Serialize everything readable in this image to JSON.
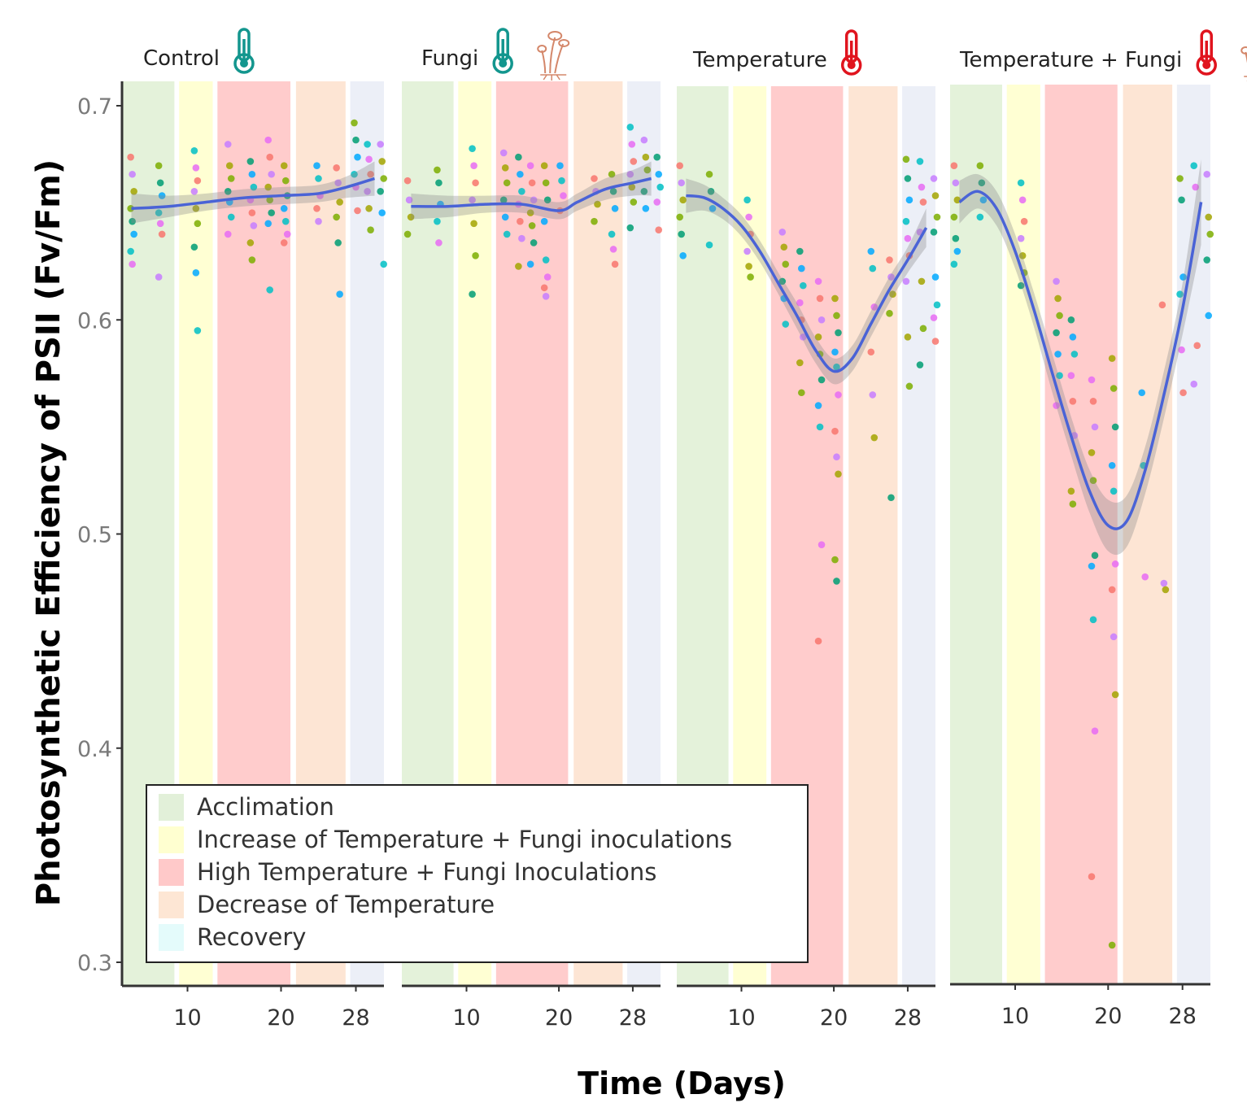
{
  "chart_data": {
    "type": "scatter",
    "xlabel": "Time (Days)",
    "ylabel": "Photosynthetic Efficiency of PSII (Fv/Fm)",
    "xlim": [
      3,
      31
    ],
    "ylim": [
      0.29,
      0.71
    ],
    "x_ticks": [
      10,
      20,
      28
    ],
    "y_ticks": [
      0.3,
      0.4,
      0.5,
      0.6,
      0.7
    ],
    "y_tick_labels": [
      "0.3",
      "0.4",
      "0.5",
      "0.6",
      "0.7"
    ],
    "legend": {
      "placement": "bottom-left",
      "items": [
        {
          "label": "Acclimation",
          "color": "#e2f0d9"
        },
        {
          "label": "Increase of Temperature + Fungi inoculations",
          "color": "#ffffd0"
        },
        {
          "label": "High Temperature + Fungi Inoculations",
          "color": "#ffc9c9"
        },
        {
          "label": "Decrease of Temperature",
          "color": "#fde6d4"
        },
        {
          "label": "Recovery",
          "color": "#e4fbfb"
        }
      ]
    },
    "phases": [
      {
        "from": 3.0,
        "to": 8.6,
        "color": "#e4f2da"
      },
      {
        "from": 9.1,
        "to": 12.7,
        "color": "#ffffd3"
      },
      {
        "from": 13.2,
        "to": 21.0,
        "color": "#ffcccc"
      },
      {
        "from": 21.6,
        "to": 26.9,
        "color": "#fde5d4"
      },
      {
        "from": 27.4,
        "to": 31.0,
        "color": "#eceff7"
      }
    ],
    "point_colors": [
      "#f8766d",
      "#7cae00",
      "#00bfc4",
      "#c77cff",
      "#009e73",
      "#e76bf3",
      "#a3a500",
      "#00a9ff"
    ],
    "panels": [
      {
        "title": "Control",
        "icon": "teal-thermometer-icon",
        "fungi_icon": false,
        "icon_color": "#13968e",
        "smooth": {
          "x": [
            4,
            8,
            12,
            16,
            20,
            24,
            27,
            30
          ],
          "y": [
            0.652,
            0.653,
            0.655,
            0.657,
            0.658,
            0.659,
            0.662,
            0.666
          ],
          "band": [
            0.007,
            0.005,
            0.004,
            0.004,
            0.004,
            0.004,
            0.005,
            0.008
          ]
        },
        "points": [
          {
            "x": 4.1,
            "y": [
              0.676,
              0.668,
              0.66,
              0.652,
              0.646,
              0.64,
              0.632,
              0.626
            ]
          },
          {
            "x": 7.1,
            "y": [
              0.672,
              0.664,
              0.658,
              0.65,
              0.645,
              0.64,
              0.62
            ]
          },
          {
            "x": 10.9,
            "y": [
              0.679,
              0.671,
              0.665,
              0.66,
              0.652,
              0.645,
              0.634,
              0.622,
              0.595
            ]
          },
          {
            "x": 14.5,
            "y": [
              0.682,
              0.672,
              0.666,
              0.66,
              0.655,
              0.648,
              0.64
            ]
          },
          {
            "x": 16.9,
            "y": [
              0.674,
              0.668,
              0.662,
              0.656,
              0.65,
              0.644,
              0.636,
              0.628
            ]
          },
          {
            "x": 18.8,
            "y": [
              0.684,
              0.676,
              0.668,
              0.662,
              0.656,
              0.65,
              0.645,
              0.614
            ]
          },
          {
            "x": 20.5,
            "y": [
              0.672,
              0.665,
              0.658,
              0.652,
              0.646,
              0.64,
              0.636
            ]
          },
          {
            "x": 24.0,
            "y": [
              0.672,
              0.666,
              0.658,
              0.652,
              0.646
            ]
          },
          {
            "x": 26.1,
            "y": [
              0.671,
              0.664,
              0.655,
              0.648,
              0.636,
              0.612
            ]
          },
          {
            "x": 28.0,
            "y": [
              0.692,
              0.684,
              0.676,
              0.668,
              0.662,
              0.651
            ]
          },
          {
            "x": 29.4,
            "y": [
              0.682,
              0.675,
              0.668,
              0.66,
              0.652,
              0.642
            ]
          },
          {
            "x": 30.8,
            "y": [
              0.682,
              0.674,
              0.666,
              0.66,
              0.65,
              0.626
            ]
          }
        ]
      },
      {
        "title": "Fungi",
        "icon": "teal-thermometer-icon",
        "fungi_icon": true,
        "icon_color": "#13968e",
        "smooth": {
          "x": [
            4,
            8,
            12,
            16,
            20,
            22,
            25,
            28,
            30
          ],
          "y": [
            0.653,
            0.653,
            0.654,
            0.654,
            0.651,
            0.655,
            0.661,
            0.664,
            0.666
          ],
          "band": [
            0.006,
            0.005,
            0.004,
            0.004,
            0.004,
            0.004,
            0.005,
            0.006,
            0.008
          ]
        },
        "points": [
          {
            "x": 3.8,
            "y": [
              0.665,
              0.656,
              0.648,
              0.64
            ]
          },
          {
            "x": 7.0,
            "y": [
              0.67,
              0.664,
              0.654,
              0.646,
              0.636
            ]
          },
          {
            "x": 10.8,
            "y": [
              0.68,
              0.672,
              0.664,
              0.656,
              0.645,
              0.63,
              0.612
            ]
          },
          {
            "x": 14.2,
            "y": [
              0.678,
              0.671,
              0.664,
              0.656,
              0.648,
              0.64
            ]
          },
          {
            "x": 15.8,
            "y": [
              0.676,
              0.668,
              0.66,
              0.654,
              0.646,
              0.638,
              0.625
            ]
          },
          {
            "x": 17.1,
            "y": [
              0.672,
              0.664,
              0.656,
              0.65,
              0.644,
              0.636,
              0.626
            ]
          },
          {
            "x": 18.6,
            "y": [
              0.672,
              0.664,
              0.656,
              0.646,
              0.628,
              0.62,
              0.615,
              0.611
            ]
          },
          {
            "x": 20.3,
            "y": [
              0.672,
              0.665,
              0.658,
              0.651
            ]
          },
          {
            "x": 24.0,
            "y": [
              0.666,
              0.66,
              0.654,
              0.646
            ]
          },
          {
            "x": 25.9,
            "y": [
              0.668,
              0.66,
              0.652,
              0.64,
              0.633,
              0.626
            ]
          },
          {
            "x": 27.9,
            "y": [
              0.69,
              0.682,
              0.674,
              0.668,
              0.662,
              0.655,
              0.643
            ]
          },
          {
            "x": 29.4,
            "y": [
              0.684,
              0.676,
              0.67,
              0.66,
              0.652
            ]
          },
          {
            "x": 30.8,
            "y": [
              0.676,
              0.668,
              0.662,
              0.655,
              0.642
            ]
          }
        ]
      },
      {
        "title": "Temperature",
        "icon": "red-thermometer-icon",
        "fungi_icon": false,
        "icon_color": "#e0141e",
        "smooth": {
          "x": [
            4,
            6,
            8,
            10,
            12,
            14,
            16,
            18,
            20,
            22,
            24,
            26,
            28,
            30
          ],
          "y": [
            0.658,
            0.657,
            0.652,
            0.644,
            0.632,
            0.617,
            0.602,
            0.586,
            0.576,
            0.582,
            0.598,
            0.614,
            0.628,
            0.643
          ],
          "band": [
            0.008,
            0.006,
            0.005,
            0.005,
            0.005,
            0.005,
            0.006,
            0.006,
            0.006,
            0.006,
            0.006,
            0.006,
            0.006,
            0.009
          ]
        },
        "points": [
          {
            "x": 3.5,
            "y": [
              0.672,
              0.664,
              0.656,
              0.648,
              0.64,
              0.63
            ]
          },
          {
            "x": 6.7,
            "y": [
              0.668,
              0.66,
              0.652,
              0.635
            ]
          },
          {
            "x": 10.8,
            "y": [
              0.656,
              0.648,
              0.64,
              0.632,
              0.625,
              0.62
            ]
          },
          {
            "x": 14.6,
            "y": [
              0.641,
              0.634,
              0.626,
              0.618,
              0.61,
              0.598
            ]
          },
          {
            "x": 16.5,
            "y": [
              0.632,
              0.624,
              0.616,
              0.608,
              0.6,
              0.592,
              0.58,
              0.566
            ]
          },
          {
            "x": 18.5,
            "y": [
              0.618,
              0.61,
              0.6,
              0.592,
              0.584,
              0.572,
              0.56,
              0.55,
              0.495,
              0.45
            ]
          },
          {
            "x": 20.3,
            "y": [
              0.61,
              0.602,
              0.594,
              0.585,
              0.578,
              0.565,
              0.548,
              0.536,
              0.528,
              0.488,
              0.478
            ]
          },
          {
            "x": 24.2,
            "y": [
              0.632,
              0.624,
              0.606,
              0.585,
              0.565,
              0.545
            ]
          },
          {
            "x": 26.2,
            "y": [
              0.628,
              0.62,
              0.612,
              0.603,
              0.517
            ]
          },
          {
            "x": 28.0,
            "y": [
              0.675,
              0.666,
              0.656,
              0.646,
              0.638,
              0.63,
              0.618,
              0.592,
              0.569
            ]
          },
          {
            "x": 29.5,
            "y": [
              0.674,
              0.662,
              0.655,
              0.641,
              0.618,
              0.596,
              0.579
            ]
          },
          {
            "x": 31.0,
            "y": [
              0.666,
              0.658,
              0.648,
              0.641,
              0.62,
              0.607,
              0.601,
              0.59
            ]
          }
        ]
      },
      {
        "title": "Temperature + Fungi",
        "icon": "red-thermometer-icon",
        "fungi_icon": true,
        "icon_color": "#e0141e",
        "smooth": {
          "x": [
            4,
            6,
            8,
            10,
            12,
            14,
            16,
            18,
            20,
            22,
            24,
            26,
            28,
            30
          ],
          "y": [
            0.655,
            0.66,
            0.652,
            0.632,
            0.605,
            0.575,
            0.546,
            0.52,
            0.504,
            0.506,
            0.53,
            0.565,
            0.605,
            0.655
          ],
          "band": [
            0.01,
            0.008,
            0.008,
            0.008,
            0.008,
            0.009,
            0.009,
            0.01,
            0.012,
            0.012,
            0.011,
            0.011,
            0.012,
            0.02
          ]
        },
        "points": [
          {
            "x": 3.6,
            "y": [
              0.672,
              0.664,
              0.656,
              0.648,
              0.638,
              0.632,
              0.626
            ]
          },
          {
            "x": 6.4,
            "y": [
              0.672,
              0.664,
              0.656,
              0.648
            ]
          },
          {
            "x": 10.8,
            "y": [
              0.664,
              0.656,
              0.646,
              0.638,
              0.63,
              0.622,
              0.616
            ]
          },
          {
            "x": 14.6,
            "y": [
              0.618,
              0.61,
              0.602,
              0.594,
              0.584,
              0.574,
              0.56
            ]
          },
          {
            "x": 16.2,
            "y": [
              0.6,
              0.592,
              0.584,
              0.574,
              0.562,
              0.546,
              0.52,
              0.514
            ]
          },
          {
            "x": 18.4,
            "y": [
              0.572,
              0.562,
              0.55,
              0.538,
              0.525,
              0.49,
              0.485,
              0.46,
              0.408,
              0.34
            ]
          },
          {
            "x": 20.6,
            "y": [
              0.582,
              0.568,
              0.55,
              0.532,
              0.52,
              0.486,
              0.474,
              0.452,
              0.425,
              0.308
            ]
          },
          {
            "x": 23.8,
            "y": [
              0.566,
              0.532,
              0.48
            ]
          },
          {
            "x": 26.0,
            "y": [
              0.607,
              0.477,
              0.474
            ]
          },
          {
            "x": 27.9,
            "y": [
              0.666,
              0.656,
              0.62,
              0.612,
              0.586,
              0.566
            ]
          },
          {
            "x": 29.4,
            "y": [
              0.672,
              0.662,
              0.588,
              0.57
            ]
          },
          {
            "x": 30.8,
            "y": [
              0.668,
              0.648,
              0.64,
              0.628,
              0.602
            ]
          }
        ]
      }
    ]
  }
}
